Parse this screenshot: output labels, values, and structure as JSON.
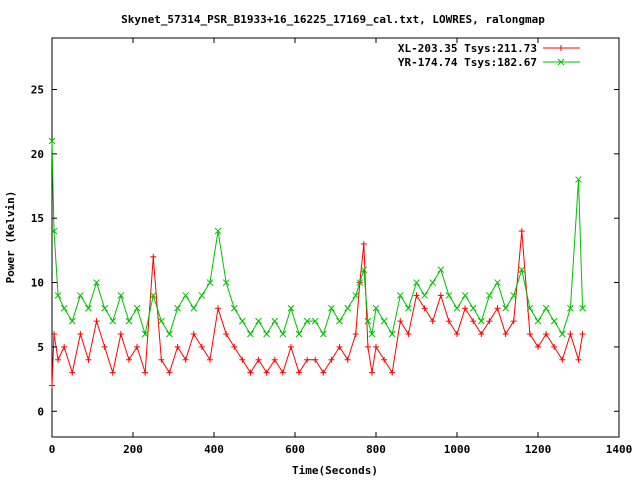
{
  "chart_data": {
    "type": "line",
    "title": "Skynet_57314_PSR_B1933+16_16225_17169_cal.txt, LOWRES, ralongmap",
    "xlabel": "Time(Seconds)",
    "ylabel": "Power (Kelvin)",
    "xlim": [
      0,
      1400
    ],
    "ylim": [
      -2,
      29
    ],
    "xticks": [
      0,
      200,
      400,
      600,
      800,
      1000,
      1200,
      1400
    ],
    "yticks": [
      0,
      5,
      10,
      15,
      20,
      25
    ],
    "grid": false,
    "legend_position": "top-right",
    "marker": "plus-and-cross",
    "series": [
      {
        "name": "XL-203.35 Tsys:211.73",
        "color": "#ff0000",
        "x": [
          0,
          5,
          15,
          30,
          50,
          70,
          90,
          110,
          130,
          150,
          170,
          190,
          210,
          230,
          250,
          270,
          290,
          310,
          330,
          350,
          370,
          390,
          410,
          430,
          450,
          470,
          490,
          510,
          530,
          550,
          570,
          590,
          610,
          630,
          650,
          670,
          690,
          710,
          730,
          750,
          760,
          770,
          780,
          790,
          800,
          820,
          840,
          860,
          880,
          900,
          920,
          940,
          960,
          980,
          1000,
          1020,
          1040,
          1060,
          1080,
          1100,
          1120,
          1140,
          1160,
          1180,
          1200,
          1220,
          1240,
          1260,
          1280,
          1300,
          1310
        ],
        "y": [
          2,
          6,
          4,
          5,
          3,
          6,
          4,
          7,
          5,
          3,
          6,
          4,
          5,
          3,
          12,
          4,
          3,
          5,
          4,
          6,
          5,
          4,
          8,
          6,
          5,
          4,
          3,
          4,
          3,
          4,
          3,
          5,
          3,
          4,
          4,
          3,
          4,
          5,
          4,
          6,
          10,
          13,
          5,
          3,
          5,
          4,
          3,
          7,
          6,
          9,
          8,
          7,
          9,
          7,
          6,
          8,
          7,
          6,
          7,
          8,
          6,
          7,
          14,
          6,
          5,
          6,
          5,
          4,
          6,
          4,
          6
        ]
      },
      {
        "name": "YR-174.74 Tsys:182.67",
        "color": "#00c000",
        "x": [
          0,
          5,
          15,
          30,
          50,
          70,
          90,
          110,
          130,
          150,
          170,
          190,
          210,
          230,
          250,
          270,
          290,
          310,
          330,
          350,
          370,
          390,
          410,
          430,
          450,
          470,
          490,
          510,
          530,
          550,
          570,
          590,
          610,
          630,
          650,
          670,
          690,
          710,
          730,
          750,
          760,
          770,
          780,
          790,
          800,
          820,
          840,
          860,
          880,
          900,
          920,
          940,
          960,
          980,
          1000,
          1020,
          1040,
          1060,
          1080,
          1100,
          1120,
          1140,
          1160,
          1180,
          1200,
          1220,
          1240,
          1260,
          1280,
          1300,
          1310
        ],
        "y": [
          21,
          14,
          9,
          8,
          7,
          9,
          8,
          10,
          8,
          7,
          9,
          7,
          8,
          6,
          9,
          7,
          6,
          8,
          9,
          8,
          9,
          10,
          14,
          10,
          8,
          7,
          6,
          7,
          6,
          7,
          6,
          8,
          6,
          7,
          7,
          6,
          8,
          7,
          8,
          9,
          10,
          11,
          7,
          6,
          8,
          7,
          6,
          9,
          8,
          10,
          9,
          10,
          11,
          9,
          8,
          9,
          8,
          7,
          9,
          10,
          8,
          9,
          11,
          8,
          7,
          8,
          7,
          6,
          8,
          18,
          8
        ]
      }
    ]
  }
}
